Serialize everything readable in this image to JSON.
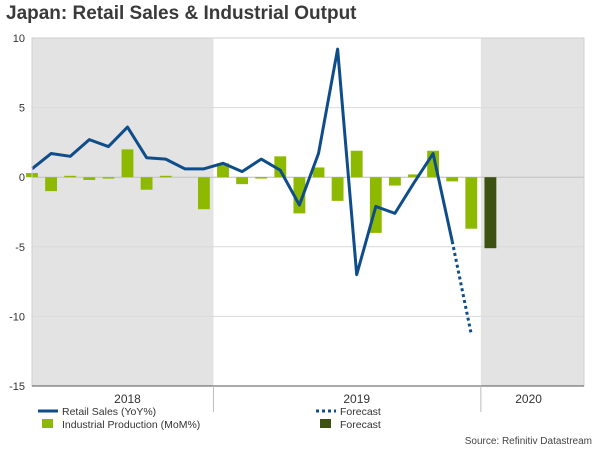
{
  "title": "Japan: Retail Sales & Industrial Output",
  "source": "Source: Refinitiv Datastream",
  "colors": {
    "retail": "#0f4d8a",
    "production": "#8dba00",
    "production_forecast": "#3d5211",
    "shade": "#e3e3e3",
    "grid": "#dadada"
  },
  "chart_data": {
    "type": "bar+line",
    "title": "Japan: Retail Sales & Industrial Output",
    "ylim": [
      -15,
      10
    ],
    "yticks": [
      10,
      5,
      0,
      -5,
      -10,
      -15
    ],
    "x_count": 29,
    "x_range": [
      0,
      28.9
    ],
    "year_labels": [
      {
        "label": "2018",
        "center": 5
      },
      {
        "label": "2019",
        "center": 17
      },
      {
        "label": "2020",
        "center": 26
      }
    ],
    "shaded_ranges": [
      [
        0,
        9.5
      ],
      [
        23.5,
        28.9
      ]
    ],
    "series": [
      {
        "name": "Retail Sales (YoY%)",
        "kind": "line",
        "values": [
          0.6,
          1.7,
          1.5,
          2.7,
          2.2,
          3.6,
          1.4,
          1.3,
          0.6,
          0.6,
          1.0,
          0.4,
          1.3,
          0.5,
          -2.0,
          1.7,
          9.2,
          -7.0,
          -2.1,
          -2.6,
          -0.4,
          1.7,
          -4.6,
          null
        ]
      },
      {
        "name": "Forecast",
        "kind": "dotted-line",
        "values": [
          null,
          null,
          null,
          null,
          null,
          null,
          null,
          null,
          null,
          null,
          null,
          null,
          null,
          null,
          null,
          null,
          null,
          null,
          null,
          null,
          null,
          null,
          -4.6,
          -11.3
        ]
      },
      {
        "name": "Industrial Production (MoM%)",
        "kind": "bar",
        "values": [
          0.3,
          -1.0,
          0.1,
          -0.2,
          -0.1,
          2.0,
          -0.9,
          0.1,
          null,
          -2.3,
          1.0,
          -0.5,
          -0.1,
          1.5,
          -2.6,
          0.7,
          -1.7,
          1.9,
          -4.0,
          -0.6,
          0.2,
          1.9,
          -0.3,
          -3.7,
          null
        ]
      },
      {
        "name": "Forecast",
        "kind": "bar-forecast",
        "values": [
          null,
          null,
          null,
          null,
          null,
          null,
          null,
          null,
          null,
          null,
          null,
          null,
          null,
          null,
          null,
          null,
          null,
          null,
          null,
          null,
          null,
          null,
          null,
          null,
          -5.1
        ]
      }
    ],
    "legend": [
      {
        "label": "Retail Sales (YoY%)",
        "marker": "line",
        "color": "#0f4d8a"
      },
      {
        "label": "Forecast",
        "marker": "dotted",
        "color": "#0f4d8a"
      },
      {
        "label": "Industrial Production (MoM%)",
        "marker": "bar",
        "color": "#8dba00"
      },
      {
        "label": "Forecast",
        "marker": "bar",
        "color": "#3d5211"
      }
    ]
  }
}
